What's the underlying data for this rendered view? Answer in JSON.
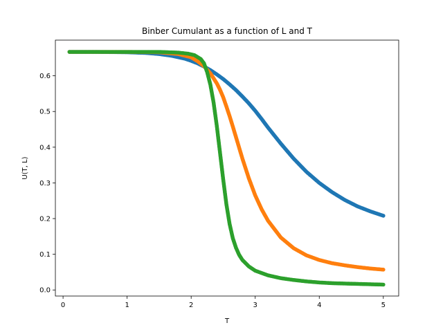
{
  "chart_data": {
    "type": "scatter",
    "title": "Binber Cumulant as a function of L and T",
    "xlabel": "T",
    "ylabel": "U(T, L)",
    "xlim": [
      -0.12,
      5.24
    ],
    "ylim": [
      -0.017,
      0.7
    ],
    "xticks": [
      0,
      1,
      2,
      3,
      4,
      5
    ],
    "yticks": [
      0.0,
      0.1,
      0.2,
      0.3,
      0.4,
      0.5,
      0.6
    ],
    "ytick_labels": [
      "0.0",
      "0.1",
      "0.2",
      "0.3",
      "0.4",
      "0.5",
      "0.6"
    ],
    "grid": false,
    "legend": "none",
    "series": [
      {
        "color": "#1f77b4",
        "x": [
          0.1,
          0.5,
          1.0,
          1.3,
          1.5,
          1.7,
          1.9,
          2.0,
          2.1,
          2.2,
          2.3,
          2.4,
          2.5,
          2.6,
          2.7,
          2.8,
          2.9,
          3.0,
          3.1,
          3.2,
          3.4,
          3.6,
          3.8,
          4.0,
          4.2,
          4.4,
          4.6,
          4.8,
          5.0
        ],
        "y": [
          0.667,
          0.667,
          0.666,
          0.664,
          0.661,
          0.656,
          0.648,
          0.642,
          0.635,
          0.626,
          0.616,
          0.604,
          0.591,
          0.576,
          0.56,
          0.542,
          0.523,
          0.502,
          0.479,
          0.455,
          0.41,
          0.368,
          0.331,
          0.3,
          0.274,
          0.252,
          0.234,
          0.22,
          0.208
        ]
      },
      {
        "color": "#ff7f0e",
        "x": [
          0.1,
          0.5,
          1.0,
          1.5,
          1.8,
          2.0,
          2.1,
          2.2,
          2.3,
          2.4,
          2.45,
          2.5,
          2.55,
          2.6,
          2.65,
          2.7,
          2.8,
          2.9,
          3.0,
          3.1,
          3.2,
          3.4,
          3.6,
          3.8,
          4.0,
          4.2,
          4.4,
          4.6,
          4.8,
          5.0
        ],
        "y": [
          0.667,
          0.667,
          0.667,
          0.666,
          0.661,
          0.652,
          0.641,
          0.627,
          0.607,
          0.579,
          0.561,
          0.54,
          0.514,
          0.487,
          0.458,
          0.428,
          0.368,
          0.313,
          0.265,
          0.226,
          0.194,
          0.147,
          0.117,
          0.097,
          0.084,
          0.075,
          0.069,
          0.064,
          0.06,
          0.057
        ]
      },
      {
        "color": "#2ca02c",
        "x": [
          0.1,
          0.5,
          1.0,
          1.5,
          1.8,
          1.95,
          2.05,
          2.15,
          2.2,
          2.25,
          2.3,
          2.35,
          2.4,
          2.45,
          2.5,
          2.55,
          2.6,
          2.65,
          2.7,
          2.75,
          2.8,
          2.9,
          3.0,
          3.2,
          3.4,
          3.6,
          3.8,
          4.0,
          4.2,
          4.4,
          4.6,
          4.8,
          5.0
        ],
        "y": [
          0.667,
          0.667,
          0.667,
          0.667,
          0.665,
          0.662,
          0.658,
          0.647,
          0.635,
          0.61,
          0.575,
          0.525,
          0.46,
          0.385,
          0.31,
          0.24,
          0.185,
          0.145,
          0.118,
          0.098,
          0.084,
          0.066,
          0.054,
          0.041,
          0.033,
          0.028,
          0.024,
          0.021,
          0.019,
          0.018,
          0.017,
          0.016,
          0.015
        ]
      }
    ]
  }
}
